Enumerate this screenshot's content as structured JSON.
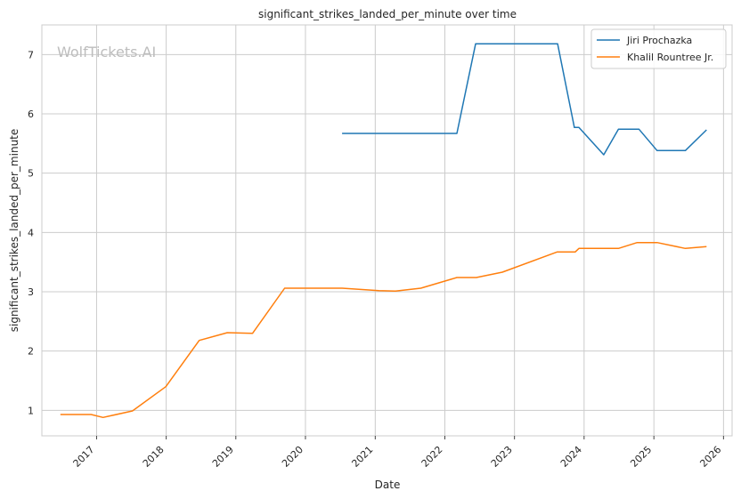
{
  "watermark": "WolfTickets.AI",
  "chart_data": {
    "type": "line",
    "title": "significant_strikes_landed_per_minute over time",
    "xlabel": "Date",
    "ylabel": "significant_strikes_landed_per_minute",
    "x_ticks": [
      "2017",
      "2018",
      "2019",
      "2020",
      "2021",
      "2022",
      "2023",
      "2024",
      "2025",
      "2026"
    ],
    "y_ticks": [
      1,
      2,
      3,
      4,
      5,
      6,
      7
    ],
    "xlim": [
      "2016-03-20",
      "2026-02-15"
    ],
    "ylim": [
      0.57,
      7.5
    ],
    "grid": true,
    "legend_position": "top-right",
    "series": [
      {
        "name": "Jiri Prochazka",
        "color": "#1f77b4",
        "points": [
          [
            "2020-07-11",
            5.67
          ],
          [
            "2022-03-05",
            5.67
          ],
          [
            "2022-06-11",
            7.18
          ],
          [
            "2023-08-15",
            7.18
          ],
          [
            "2023-11-11",
            5.77
          ],
          [
            "2023-12-05",
            5.77
          ],
          [
            "2024-04-13",
            5.31
          ],
          [
            "2024-06-29",
            5.74
          ],
          [
            "2024-10-15",
            5.74
          ],
          [
            "2025-01-18",
            5.38
          ],
          [
            "2025-06-15",
            5.38
          ],
          [
            "2025-10-04",
            5.73
          ]
        ]
      },
      {
        "name": "Khalil Rountree Jr.",
        "color": "#ff7f0e",
        "points": [
          [
            "2016-06-25",
            0.93
          ],
          [
            "2016-12-03",
            0.93
          ],
          [
            "2017-02-04",
            0.88
          ],
          [
            "2017-07-08",
            0.99
          ],
          [
            "2017-12-30",
            1.4
          ],
          [
            "2018-06-23",
            2.18
          ],
          [
            "2018-11-17",
            2.31
          ],
          [
            "2019-03-30",
            2.3
          ],
          [
            "2019-09-14",
            3.06
          ],
          [
            "2020-07-11",
            3.06
          ],
          [
            "2021-01-20",
            3.02
          ],
          [
            "2021-04-17",
            3.01
          ],
          [
            "2021-08-28",
            3.06
          ],
          [
            "2022-03-05",
            3.24
          ],
          [
            "2022-06-15",
            3.24
          ],
          [
            "2022-10-29",
            3.33
          ],
          [
            "2023-08-12",
            3.67
          ],
          [
            "2023-11-15",
            3.67
          ],
          [
            "2023-12-05",
            3.73
          ],
          [
            "2024-06-29",
            3.73
          ],
          [
            "2024-10-05",
            3.83
          ],
          [
            "2025-01-18",
            3.83
          ],
          [
            "2025-06-15",
            3.73
          ],
          [
            "2025-10-04",
            3.76
          ]
        ]
      }
    ]
  }
}
